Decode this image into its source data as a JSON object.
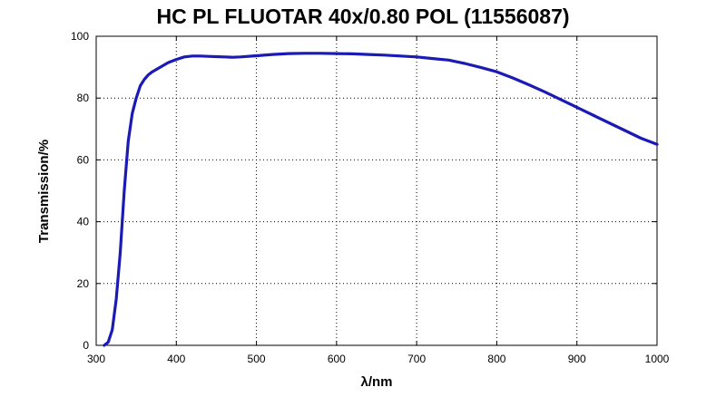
{
  "chart_data": {
    "type": "line",
    "title": "HC PL FLUOTAR 40x/0.80 POL (11556087)",
    "xlabel": "λ/nm",
    "ylabel": "Transmission/%",
    "xlim": [
      300,
      1000
    ],
    "ylim": [
      0,
      100
    ],
    "xticks": [
      300,
      400,
      500,
      600,
      700,
      800,
      900,
      1000
    ],
    "yticks": [
      0,
      20,
      40,
      60,
      80,
      100
    ],
    "grid": true,
    "line_color": "#1a1ab4",
    "series": [
      {
        "x": [
          310,
          315,
          320,
          325,
          330,
          335,
          340,
          345,
          350,
          355,
          360,
          365,
          370,
          380,
          390,
          400,
          410,
          420,
          430,
          440,
          450,
          460,
          470,
          480,
          500,
          520,
          540,
          560,
          580,
          600,
          620,
          640,
          660,
          680,
          700,
          720,
          740,
          760,
          780,
          800,
          820,
          840,
          860,
          880,
          900,
          920,
          940,
          960,
          980,
          1000
        ],
        "y": [
          0,
          1,
          5,
          15,
          30,
          50,
          66,
          75,
          80,
          84,
          86,
          87.5,
          88.5,
          90,
          91.5,
          92.5,
          93.3,
          93.6,
          93.6,
          93.5,
          93.4,
          93.3,
          93.2,
          93.3,
          93.7,
          94.1,
          94.4,
          94.5,
          94.5,
          94.4,
          94.3,
          94.1,
          93.9,
          93.6,
          93.3,
          92.8,
          92.3,
          91.2,
          89.9,
          88.5,
          86.5,
          84.3,
          82,
          79.5,
          77,
          74.5,
          72,
          69.5,
          67,
          65
        ]
      }
    ]
  }
}
